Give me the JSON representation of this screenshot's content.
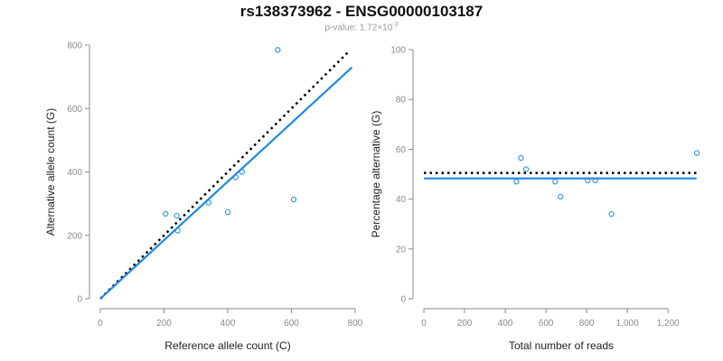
{
  "header": {
    "title": "rs138373962 - ENSG00000103187",
    "pvalue_prefix": "p-value: 1.72×10",
    "pvalue_exp": "-3"
  },
  "colors": {
    "points": "#2a8fd6",
    "fit_line": "#1e88e5",
    "reference_line": "#000000",
    "axis": "#8a8a8a"
  },
  "chart_data": [
    {
      "type": "scatter",
      "xlabel": "Reference allele count (C)",
      "ylabel": "Alternative allele count (G)",
      "xlim": [
        0,
        800
      ],
      "ylim": [
        0,
        800
      ],
      "xticks": [
        0,
        200,
        400,
        600,
        800
      ],
      "xtick_labels": [
        "0",
        "200",
        "400",
        "600",
        "800"
      ],
      "yticks": [
        0,
        200,
        400,
        600,
        800
      ],
      "ytick_labels": [
        "0",
        "200",
        "400",
        "600",
        "800"
      ],
      "points": [
        {
          "x": 205,
          "y": 268
        },
        {
          "x": 240,
          "y": 262
        },
        {
          "x": 243,
          "y": 215
        },
        {
          "x": 340,
          "y": 303
        },
        {
          "x": 400,
          "y": 273
        },
        {
          "x": 425,
          "y": 383
        },
        {
          "x": 445,
          "y": 400
        },
        {
          "x": 557,
          "y": 785
        },
        {
          "x": 607,
          "y": 313
        }
      ],
      "fit_line": {
        "x": [
          0,
          790
        ],
        "y": [
          0,
          730
        ]
      },
      "reference_line": {
        "x": [
          0,
          780
        ],
        "y": [
          0,
          780
        ]
      }
    },
    {
      "type": "scatter",
      "xlabel": "Total number of reads",
      "ylabel": "Percentage alternative (G)",
      "xlim": [
        0,
        1350
      ],
      "ylim": [
        0,
        100
      ],
      "xticks": [
        0,
        200,
        400,
        600,
        800,
        1000,
        1200
      ],
      "xtick_labels": [
        "0",
        "200",
        "400",
        "600",
        "800",
        "1,000",
        "1,200"
      ],
      "yticks": [
        0,
        20,
        40,
        60,
        80,
        100
      ],
      "ytick_labels": [
        "0",
        "20",
        "40",
        "60",
        "80",
        "100"
      ],
      "points": [
        {
          "x": 455,
          "y": 47
        },
        {
          "x": 477,
          "y": 56.5
        },
        {
          "x": 502,
          "y": 52
        },
        {
          "x": 645,
          "y": 47
        },
        {
          "x": 672,
          "y": 41
        },
        {
          "x": 805,
          "y": 47.5
        },
        {
          "x": 842,
          "y": 47.5
        },
        {
          "x": 922,
          "y": 34
        },
        {
          "x": 1342,
          "y": 58.5
        }
      ],
      "fit_line": {
        "x": [
          0,
          1340
        ],
        "y": [
          48.3,
          48.3
        ]
      },
      "reference_line": {
        "x": [
          0,
          1340
        ],
        "y": [
          50.5,
          50.5
        ]
      }
    }
  ]
}
